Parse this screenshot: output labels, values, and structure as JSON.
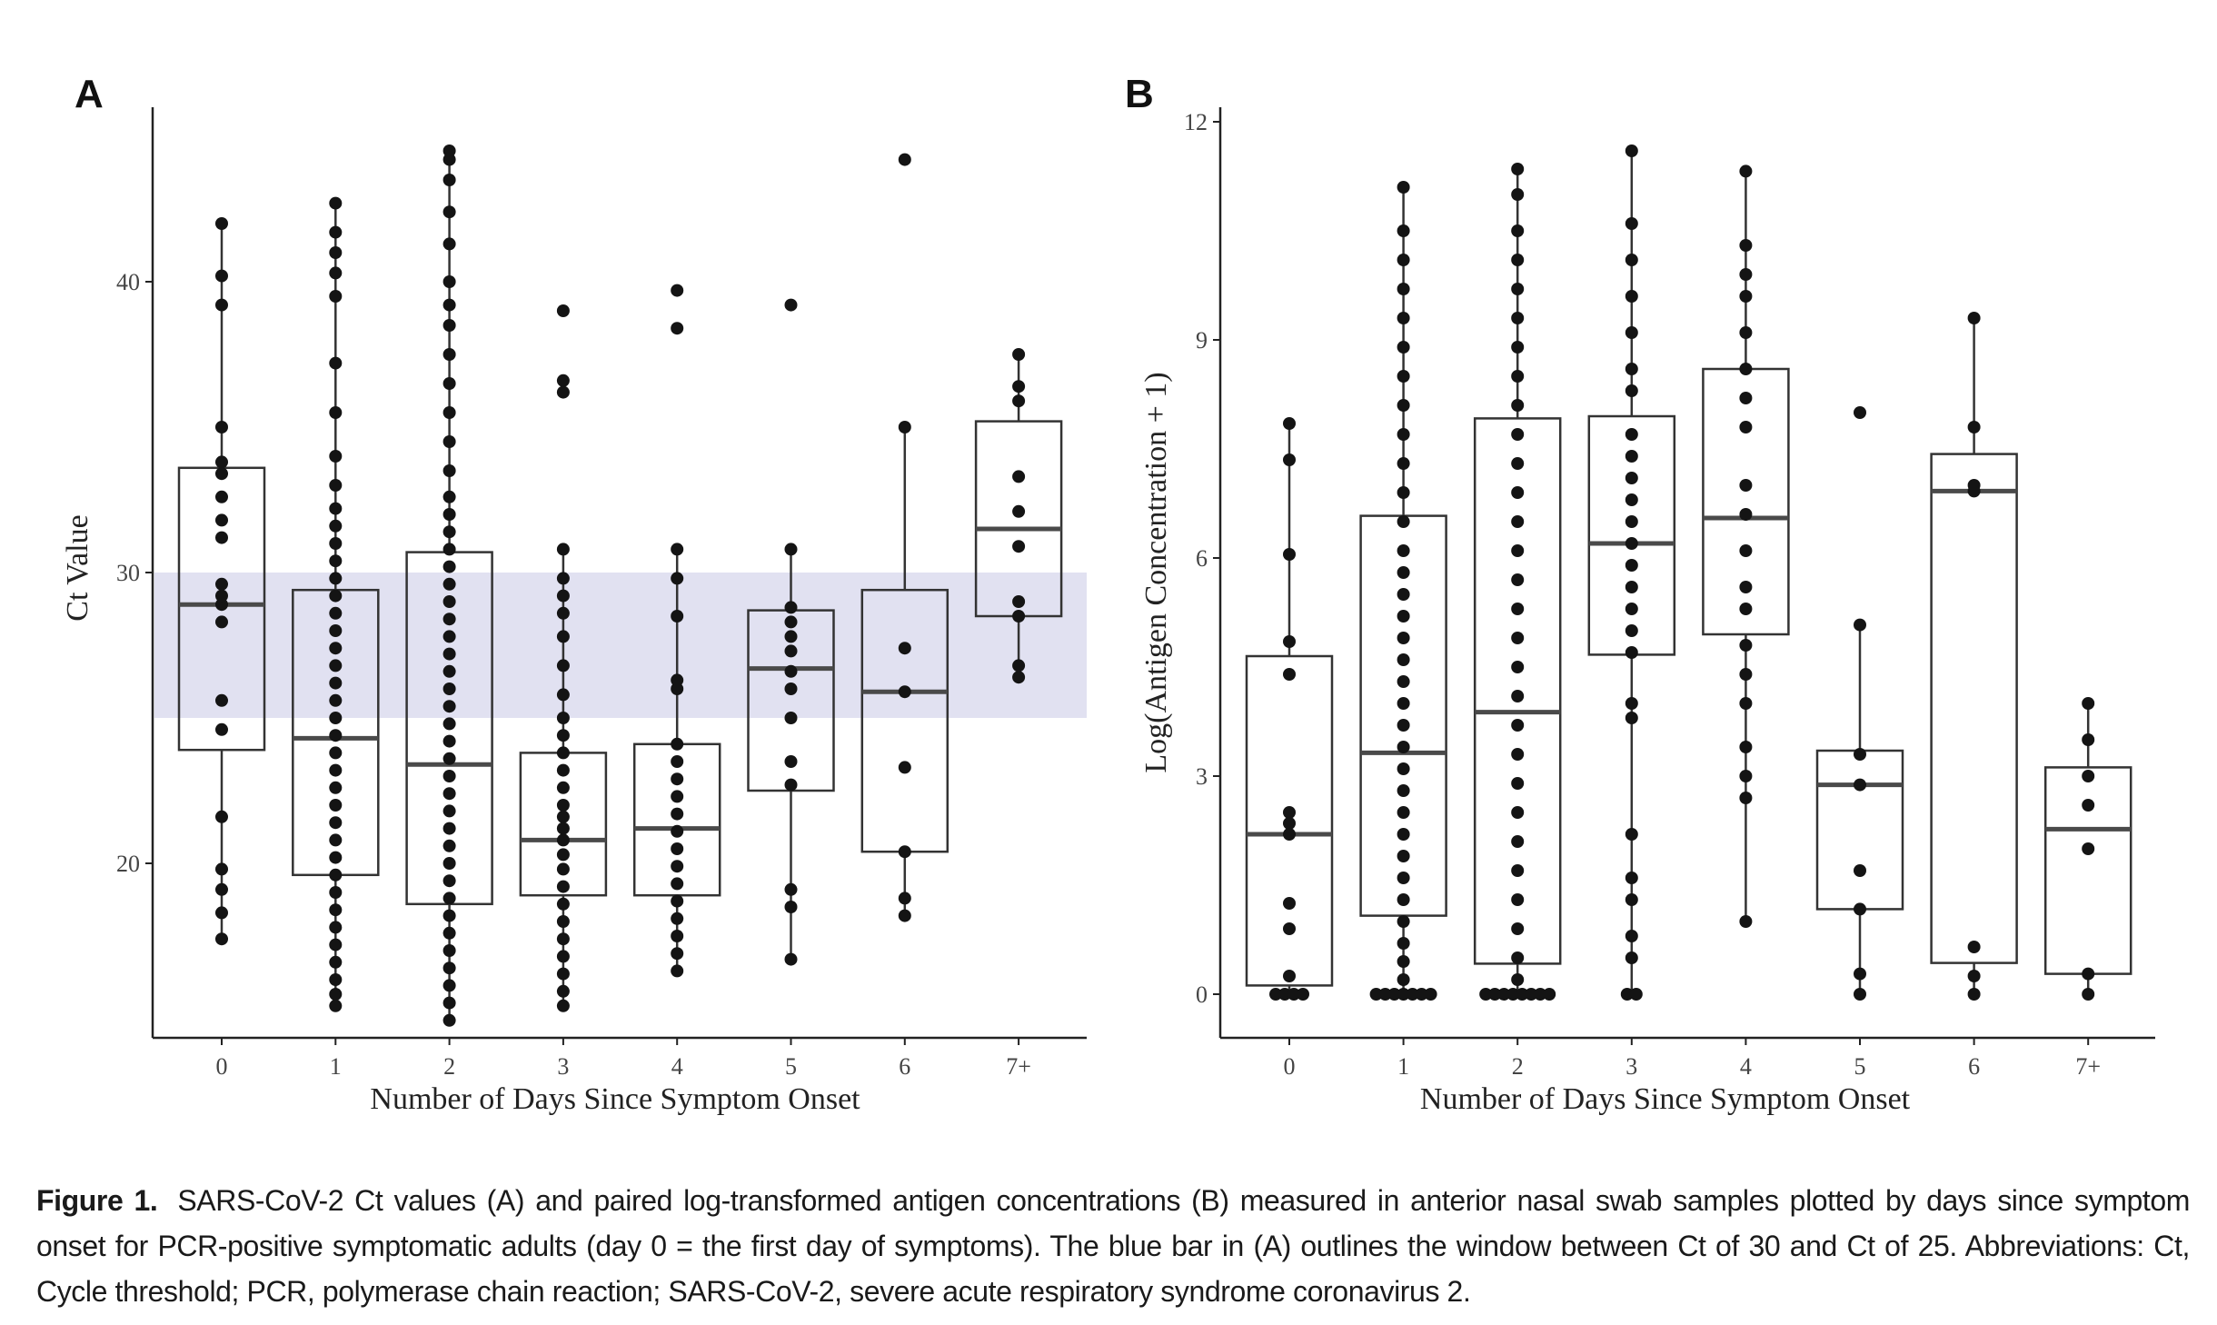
{
  "chart_data": [
    {
      "panel": "A",
      "type": "box",
      "xlabel": "Number of Days Since Symptom Onset",
      "ylabel": "Ct Value",
      "ylim": [
        14,
        46
      ],
      "yticks": [
        20,
        30,
        40
      ],
      "categories": [
        "0",
        "1",
        "2",
        "3",
        "4",
        "5",
        "6",
        "7+"
      ],
      "band": {
        "from": 25,
        "to": 30,
        "color": "#dcdcef"
      },
      "boxes": [
        {
          "q1": 23.9,
          "median": 28.9,
          "q3": 33.6,
          "wlo": 17.4,
          "whi": 42.0
        },
        {
          "q1": 19.6,
          "median": 24.3,
          "q3": 29.4,
          "wlo": 15.1,
          "whi": 42.7
        },
        {
          "q1": 18.6,
          "median": 23.4,
          "q3": 30.7,
          "wlo": 14.6,
          "whi": 44.5
        },
        {
          "q1": 18.9,
          "median": 20.8,
          "q3": 23.8,
          "wlo": 15.1,
          "whi": 30.8
        },
        {
          "q1": 18.9,
          "median": 21.2,
          "q3": 24.1,
          "wlo": 16.3,
          "whi": 30.8
        },
        {
          "q1": 22.5,
          "median": 26.7,
          "q3": 28.7,
          "wlo": 16.7,
          "whi": 30.8
        },
        {
          "q1": 20.4,
          "median": 25.9,
          "q3": 29.4,
          "wlo": 18.2,
          "whi": 35.0
        },
        {
          "q1": 28.5,
          "median": 31.5,
          "q3": 35.2,
          "wlo": 26.4,
          "whi": 37.5
        }
      ],
      "points": [
        [
          17.4,
          18.3,
          19.1,
          19.8,
          21.6,
          24.6,
          25.6,
          28.3,
          28.9,
          29.2,
          29.6,
          31.2,
          31.8,
          32.6,
          33.4,
          33.8,
          35.0,
          39.2,
          40.2,
          42.0
        ],
        [
          15.1,
          15.5,
          16.0,
          16.6,
          17.2,
          17.8,
          18.4,
          19.0,
          19.6,
          20.2,
          20.8,
          21.4,
          22.0,
          22.6,
          23.2,
          23.8,
          24.4,
          25.0,
          25.6,
          26.2,
          26.8,
          27.4,
          28.0,
          28.6,
          29.2,
          29.8,
          30.4,
          31.0,
          31.6,
          32.2,
          33.0,
          34.0,
          35.5,
          37.2,
          39.5,
          40.3,
          41.0,
          41.7,
          42.7
        ],
        [
          14.6,
          15.2,
          15.8,
          16.4,
          17.0,
          17.6,
          18.2,
          18.8,
          19.4,
          20.0,
          20.6,
          21.2,
          21.8,
          22.4,
          23.0,
          23.6,
          24.2,
          24.8,
          25.4,
          26.0,
          26.6,
          27.2,
          27.8,
          28.4,
          29.0,
          29.6,
          30.2,
          30.8,
          31.4,
          32.0,
          32.6,
          33.5,
          34.5,
          35.5,
          36.5,
          37.5,
          38.5,
          39.2,
          40.0,
          41.3,
          42.4,
          43.5,
          44.2,
          44.5
        ],
        [
          15.1,
          15.6,
          16.2,
          16.8,
          17.4,
          18.0,
          18.6,
          19.2,
          19.8,
          20.3,
          20.8,
          21.2,
          21.6,
          22.0,
          22.6,
          23.2,
          23.8,
          24.4,
          25.0,
          25.8,
          26.8,
          27.8,
          28.6,
          29.2,
          29.8,
          30.8,
          36.2,
          36.6,
          39.0
        ],
        [
          16.3,
          16.9,
          17.5,
          18.1,
          18.7,
          19.3,
          19.9,
          20.5,
          21.1,
          21.7,
          22.3,
          22.9,
          23.5,
          24.1,
          26.0,
          26.3,
          28.5,
          29.8,
          30.8,
          38.4,
          39.7
        ],
        [
          16.7,
          18.5,
          19.1,
          22.7,
          23.5,
          25.0,
          26.0,
          26.6,
          27.3,
          27.8,
          28.3,
          28.8,
          30.8,
          39.2
        ],
        [
          18.2,
          18.8,
          20.4,
          23.3,
          25.9,
          27.4,
          35.0,
          44.2
        ],
        [
          26.4,
          26.8,
          28.5,
          29.0,
          30.9,
          32.1,
          33.3,
          35.9,
          36.4,
          37.5
        ]
      ]
    },
    {
      "panel": "B",
      "type": "box",
      "xlabel": "Number of Days Since Symptom Onset",
      "ylabel": "Log(Antigen Concentration + 1)",
      "ylim": [
        -0.6,
        12.2
      ],
      "yticks": [
        0,
        3,
        6,
        9,
        12
      ],
      "categories": [
        "0",
        "1",
        "2",
        "3",
        "4",
        "5",
        "6",
        "7+"
      ],
      "boxes": [
        {
          "q1": 0.12,
          "median": 2.2,
          "q3": 4.65,
          "wlo": 0,
          "whi": 7.85
        },
        {
          "q1": 1.08,
          "median": 3.32,
          "q3": 6.58,
          "wlo": 0,
          "whi": 11.1
        },
        {
          "q1": 0.42,
          "median": 3.88,
          "q3": 7.92,
          "wlo": 0,
          "whi": 11.35
        },
        {
          "q1": 4.67,
          "median": 6.2,
          "q3": 7.95,
          "wlo": 0,
          "whi": 11.6
        },
        {
          "q1": 4.95,
          "median": 6.55,
          "q3": 8.6,
          "wlo": 1.0,
          "whi": 11.32
        },
        {
          "q1": 1.17,
          "median": 2.88,
          "q3": 3.35,
          "wlo": 0,
          "whi": 5.08
        },
        {
          "q1": 0.43,
          "median": 6.92,
          "q3": 7.43,
          "wlo": 0,
          "whi": 9.3
        },
        {
          "q1": 0.28,
          "median": 2.27,
          "q3": 3.12,
          "wlo": 0,
          "whi": 4.0
        }
      ],
      "points": [
        [
          0,
          0,
          0,
          0,
          0.25,
          0.9,
          1.25,
          2.2,
          2.35,
          2.5,
          4.4,
          4.85,
          6.05,
          7.35,
          7.85
        ],
        [
          0,
          0,
          0,
          0,
          0,
          0,
          0,
          0.2,
          0.45,
          0.7,
          1.0,
          1.3,
          1.6,
          1.9,
          2.2,
          2.5,
          2.8,
          3.1,
          3.4,
          3.7,
          4.0,
          4.3,
          4.6,
          4.9,
          5.2,
          5.5,
          5.8,
          6.1,
          6.5,
          6.9,
          7.3,
          7.7,
          8.1,
          8.5,
          8.9,
          9.3,
          9.7,
          10.1,
          10.5,
          11.1
        ],
        [
          0,
          0,
          0,
          0,
          0,
          0,
          0,
          0,
          0.2,
          0.5,
          0.9,
          1.3,
          1.7,
          2.1,
          2.5,
          2.9,
          3.3,
          3.7,
          4.1,
          4.5,
          4.9,
          5.3,
          5.7,
          6.1,
          6.5,
          6.9,
          7.3,
          7.7,
          8.1,
          8.5,
          8.9,
          9.3,
          9.7,
          10.1,
          10.5,
          11.0,
          11.35
        ],
        [
          0,
          0,
          0.5,
          0.8,
          1.3,
          1.6,
          2.2,
          3.8,
          4.0,
          4.7,
          5.0,
          5.3,
          5.6,
          5.9,
          6.2,
          6.5,
          6.8,
          7.1,
          7.4,
          7.7,
          8.3,
          8.6,
          9.1,
          9.6,
          10.1,
          10.6,
          11.6
        ],
        [
          1.0,
          2.7,
          3.0,
          3.4,
          4.0,
          4.4,
          4.8,
          5.3,
          5.6,
          6.1,
          6.6,
          7.0,
          7.8,
          8.2,
          8.6,
          9.1,
          9.6,
          9.9,
          10.3,
          11.32
        ],
        [
          0,
          0.28,
          1.17,
          1.7,
          2.88,
          3.3,
          5.08,
          8.0
        ],
        [
          0,
          0.25,
          0.65,
          6.92,
          7.0,
          7.8,
          9.3
        ],
        [
          0,
          0.28,
          2.0,
          2.6,
          3.0,
          3.5,
          4.0
        ]
      ]
    }
  ],
  "caption": {
    "label": "Figure 1.",
    "text": "SARS-CoV-2 Ct values (A) and paired log-transformed antigen concentrations (B) measured in anterior nasal swab samples plotted by days since symptom onset for PCR-positive symptomatic adults (day 0 = the first day of symptoms). The blue bar in (A) outlines the window between Ct of 30 and Ct of 25. Abbreviations: Ct, Cycle threshold; PCR, polymerase chain reaction; SARS-CoV-2, severe acute respiratory syndrome coronavirus 2."
  }
}
